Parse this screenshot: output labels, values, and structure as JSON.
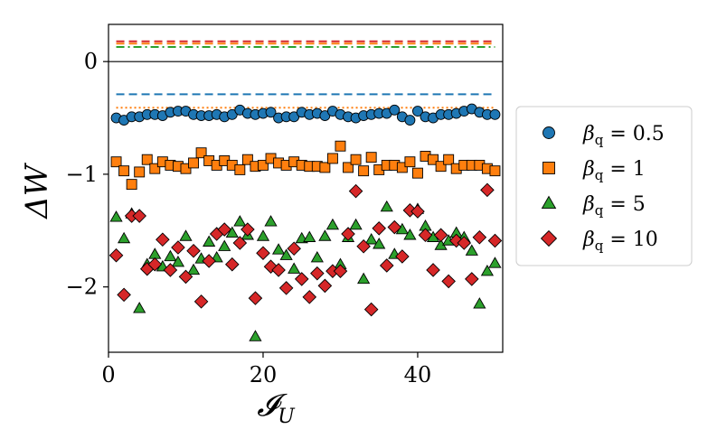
{
  "chart_data": {
    "type": "scatter",
    "xlabel": "𝓘",
    "xlabel_sub": "U",
    "ylabel": "ΔW",
    "xlim": [
      0,
      51
    ],
    "ylim": [
      -2.58,
      0.33
    ],
    "xticks": [
      0,
      20,
      40
    ],
    "xtick_labels": [
      "0",
      "20",
      "40"
    ],
    "yticks": [
      0,
      -1,
      -2
    ],
    "ytick_labels": [
      "0",
      "−1",
      "−2"
    ],
    "grid": false,
    "legend_position": "outside-right",
    "reference_lines": [
      {
        "y": 0.0,
        "style": "solid",
        "color": "#000000"
      },
      {
        "y": 0.18,
        "style": "dashed",
        "color": "#d62728"
      },
      {
        "y": 0.16,
        "style": "dashed",
        "color": "#ff7f0e"
      },
      {
        "y": 0.13,
        "style": "dashdot",
        "color": "#2ca02c"
      },
      {
        "y": -0.29,
        "style": "dashed",
        "color": "#1f77b4"
      },
      {
        "y": -0.41,
        "style": "dotted",
        "color": "#ff7f0e"
      }
    ],
    "x": [
      1,
      2,
      3,
      4,
      5,
      6,
      7,
      8,
      9,
      10,
      11,
      12,
      13,
      14,
      15,
      16,
      17,
      18,
      19,
      20,
      21,
      22,
      23,
      24,
      25,
      26,
      27,
      28,
      29,
      30,
      31,
      32,
      33,
      34,
      35,
      36,
      37,
      38,
      39,
      40,
      41,
      42,
      43,
      44,
      45,
      46,
      47,
      48,
      49,
      50
    ],
    "series": [
      {
        "name_prefix": "β",
        "name_sub": "q",
        "name_value": "0.5",
        "marker": "circle",
        "color": "#1f77b4",
        "values": [
          -0.5,
          -0.52,
          -0.49,
          -0.49,
          -0.47,
          -0.47,
          -0.48,
          -0.45,
          -0.44,
          -0.44,
          -0.47,
          -0.48,
          -0.48,
          -0.47,
          -0.49,
          -0.47,
          -0.43,
          -0.46,
          -0.47,
          -0.46,
          -0.45,
          -0.5,
          -0.49,
          -0.49,
          -0.45,
          -0.47,
          -0.46,
          -0.48,
          -0.44,
          -0.47,
          -0.49,
          -0.5,
          -0.48,
          -0.47,
          -0.46,
          -0.46,
          -0.43,
          -0.49,
          -0.52,
          -0.44,
          -0.49,
          -0.5,
          -0.47,
          -0.47,
          -0.46,
          -0.44,
          -0.42,
          -0.45,
          -0.47,
          -0.47
        ]
      },
      {
        "name_prefix": "β",
        "name_sub": "q",
        "name_value": "1",
        "marker": "square",
        "color": "#ff7f0e",
        "values": [
          -0.89,
          -0.97,
          -1.09,
          -0.98,
          -0.87,
          -0.95,
          -0.89,
          -0.92,
          -0.93,
          -0.95,
          -0.9,
          -0.81,
          -0.88,
          -0.92,
          -0.88,
          -0.92,
          -0.96,
          -0.87,
          -0.93,
          -0.92,
          -0.86,
          -0.9,
          -0.92,
          -0.89,
          -0.92,
          -0.93,
          -0.93,
          -0.94,
          -0.86,
          -0.75,
          -0.94,
          -0.87,
          -0.97,
          -0.85,
          -0.96,
          -0.92,
          -0.92,
          -0.94,
          -0.89,
          -0.99,
          -0.84,
          -0.87,
          -0.93,
          -0.87,
          -0.95,
          -0.92,
          -0.92,
          -0.92,
          -0.95,
          -0.97
        ]
      },
      {
        "name_prefix": "β",
        "name_sub": "q",
        "name_value": "5",
        "marker": "triangle",
        "color": "#2ca02c",
        "values": [
          -1.38,
          -1.57,
          -1.35,
          -2.19,
          -1.8,
          -1.71,
          -1.82,
          -1.73,
          -1.78,
          -1.55,
          -1.85,
          -1.75,
          -1.6,
          -1.74,
          -1.64,
          -1.52,
          -1.42,
          -1.54,
          -2.44,
          -1.55,
          -1.42,
          -1.67,
          -1.72,
          -1.84,
          -1.57,
          -1.56,
          -1.74,
          -1.55,
          -1.45,
          -1.8,
          -1.56,
          -1.45,
          -1.93,
          -1.58,
          -1.62,
          -1.29,
          -1.71,
          -1.49,
          -1.54,
          -1.31,
          -1.46,
          -1.56,
          -1.63,
          -1.59,
          -1.52,
          -1.56,
          -1.68,
          -2.15,
          -1.86,
          -1.79
        ]
      },
      {
        "name_prefix": "β",
        "name_sub": "q",
        "name_value": "10",
        "marker": "diamond",
        "color": "#d62728",
        "values": [
          -1.72,
          -2.07,
          -1.37,
          -1.37,
          -1.84,
          -1.8,
          -1.58,
          -1.85,
          -1.65,
          -1.91,
          -1.68,
          -2.13,
          -1.77,
          -1.53,
          -1.49,
          -1.8,
          -1.61,
          -1.49,
          -2.1,
          -1.7,
          -1.82,
          -1.85,
          -2.01,
          -1.66,
          -1.93,
          -2.09,
          -1.88,
          -1.99,
          -1.86,
          -1.86,
          -1.53,
          -1.15,
          -1.64,
          -2.2,
          -1.48,
          -1.81,
          -1.47,
          -1.73,
          -1.32,
          -1.33,
          -1.54,
          -1.85,
          -1.54,
          -1.95,
          -1.59,
          -1.61,
          -1.93,
          -1.56,
          -1.14,
          -1.59
        ]
      }
    ]
  }
}
